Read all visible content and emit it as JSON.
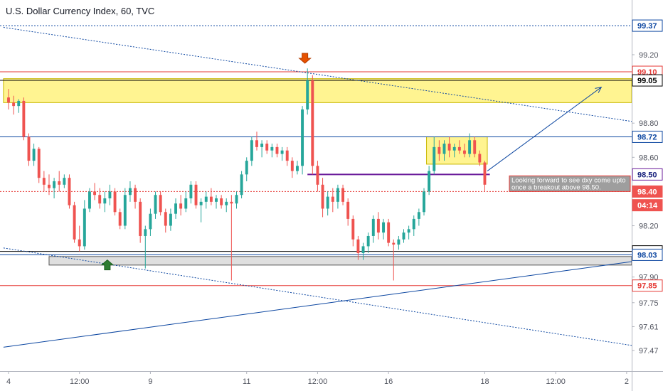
{
  "header": {
    "title": "U.S. Dollar Currency Index, 60, TVC"
  },
  "colors": {
    "up": "#26a69a",
    "down": "#ef5350",
    "red_line": "#e53935",
    "blue_line": "#0d47a1",
    "zone_fill": "#fff176",
    "zone_edge": "#c9b800",
    "grey_box": "#d9d9d9",
    "arrow_down": "#e65100",
    "arrow_up": "#2e7d32",
    "annotation_bg": "#9e9e9e"
  },
  "chart_data": {
    "type": "candlestick",
    "title": "U.S. Dollar Currency Index, 60, TVC",
    "ylim": [
      97.35,
      99.52
    ],
    "y_ticks": [
      97.47,
      97.61,
      97.75,
      97.9,
      98.2,
      98.6,
      98.8,
      99.2
    ],
    "x_ticks": [
      {
        "label": "4",
        "i": 0
      },
      {
        "label": "12:00",
        "i": 14
      },
      {
        "label": "9",
        "i": 28
      },
      {
        "label": "11",
        "i": 47
      },
      {
        "label": "12:00",
        "i": 61
      },
      {
        "label": "16",
        "i": 75
      },
      {
        "label": "18",
        "i": 94
      },
      {
        "label": "12:00",
        "i": 108
      },
      {
        "label": "2",
        "i": 122
      }
    ],
    "x_span": 123,
    "price_labels": [
      {
        "value": 99.37,
        "text": "99.37",
        "style": "blue-box"
      },
      {
        "value": 99.1,
        "text": "99.10",
        "style": "red-box"
      },
      {
        "value": 99.05,
        "text": "99.05",
        "style": "black-box"
      },
      {
        "value": 98.72,
        "text": "98.72",
        "style": "blue-box"
      },
      {
        "value": 98.5,
        "text": "98.50",
        "style": "purple-box"
      },
      {
        "value": 98.4,
        "text": "98.40",
        "style": "red-fill"
      },
      {
        "value": 98.32,
        "text": "04:14",
        "style": "red-fill"
      },
      {
        "value": 98.05,
        "text": "98.05",
        "style": "black-box"
      },
      {
        "value": 98.03,
        "text": "98.03",
        "style": "blue-box"
      },
      {
        "value": 97.85,
        "text": "97.85",
        "style": "red-box"
      }
    ],
    "horizontal_lines": [
      {
        "value": 99.37,
        "color": "blue",
        "dash": true
      },
      {
        "value": 99.1,
        "color": "red",
        "dash": false
      },
      {
        "value": 99.05,
        "color": "black",
        "dash": false
      },
      {
        "value": 98.72,
        "color": "blue",
        "dash": false
      },
      {
        "value": 98.4,
        "color": "red",
        "dash": true
      },
      {
        "value": 98.05,
        "color": "black",
        "dash": false
      },
      {
        "value": 98.03,
        "color": "blue",
        "dash": false
      },
      {
        "value": 97.85,
        "color": "red",
        "dash": false
      }
    ],
    "annotation": "Looking forward to see dxy come upto once a breakout above 98.50.",
    "candles": [
      [
        98.95,
        99.0,
        98.88,
        98.92
      ],
      [
        98.92,
        98.96,
        98.85,
        98.9
      ],
      [
        98.9,
        98.94,
        98.86,
        98.93
      ],
      [
        98.93,
        98.95,
        98.7,
        98.72
      ],
      [
        98.72,
        98.74,
        98.55,
        98.58
      ],
      [
        98.58,
        98.68,
        98.55,
        98.65
      ],
      [
        98.65,
        98.66,
        98.45,
        98.48
      ],
      [
        98.48,
        98.52,
        98.4,
        98.44
      ],
      [
        98.44,
        98.5,
        98.38,
        98.42
      ],
      [
        98.42,
        98.48,
        98.36,
        98.46
      ],
      [
        98.46,
        98.52,
        98.4,
        98.44
      ],
      [
        98.44,
        98.5,
        98.42,
        98.48
      ],
      [
        98.48,
        98.5,
        98.3,
        98.32
      ],
      [
        98.32,
        98.34,
        98.1,
        98.12
      ],
      [
        98.12,
        98.2,
        98.05,
        98.08
      ],
      [
        98.08,
        98.35,
        98.06,
        98.3
      ],
      [
        98.3,
        98.42,
        98.28,
        98.4
      ],
      [
        98.4,
        98.45,
        98.35,
        98.38
      ],
      [
        98.38,
        98.42,
        98.3,
        98.33
      ],
      [
        98.33,
        98.4,
        98.28,
        98.36
      ],
      [
        98.36,
        98.44,
        98.32,
        98.4
      ],
      [
        98.4,
        98.42,
        98.26,
        98.28
      ],
      [
        98.28,
        98.3,
        98.18,
        98.2
      ],
      [
        98.2,
        98.42,
        98.18,
        98.38
      ],
      [
        98.38,
        98.46,
        98.34,
        98.42
      ],
      [
        98.42,
        98.44,
        98.3,
        98.34
      ],
      [
        98.34,
        98.36,
        98.1,
        98.14
      ],
      [
        98.14,
        98.2,
        97.95,
        98.18
      ],
      [
        98.18,
        98.3,
        98.14,
        98.27
      ],
      [
        98.27,
        98.4,
        98.24,
        98.38
      ],
      [
        98.38,
        98.4,
        98.26,
        98.28
      ],
      [
        98.28,
        98.3,
        98.16,
        98.2
      ],
      [
        98.2,
        98.3,
        98.17,
        98.27
      ],
      [
        98.27,
        98.36,
        98.24,
        98.33
      ],
      [
        98.33,
        98.38,
        98.26,
        98.3
      ],
      [
        98.3,
        98.4,
        98.28,
        98.36
      ],
      [
        98.36,
        98.46,
        98.33,
        98.44
      ],
      [
        98.44,
        98.46,
        98.3,
        98.32
      ],
      [
        98.32,
        98.36,
        98.22,
        98.34
      ],
      [
        98.34,
        98.4,
        98.3,
        98.37
      ],
      [
        98.37,
        98.42,
        98.32,
        98.34
      ],
      [
        98.34,
        98.38,
        98.3,
        98.36
      ],
      [
        98.36,
        98.38,
        98.3,
        98.32
      ],
      [
        98.32,
        98.36,
        98.28,
        98.34
      ],
      [
        98.34,
        98.38,
        97.88,
        98.33
      ],
      [
        98.33,
        98.4,
        98.3,
        98.38
      ],
      [
        98.38,
        98.52,
        98.36,
        98.5
      ],
      [
        98.5,
        98.6,
        98.46,
        98.58
      ],
      [
        98.58,
        98.72,
        98.55,
        98.7
      ],
      [
        98.7,
        98.75,
        98.64,
        98.66
      ],
      [
        98.66,
        98.7,
        98.6,
        98.68
      ],
      [
        98.68,
        98.7,
        98.62,
        98.64
      ],
      [
        98.64,
        98.68,
        98.6,
        98.66
      ],
      [
        98.66,
        98.68,
        98.6,
        98.62
      ],
      [
        98.62,
        98.66,
        98.58,
        98.64
      ],
      [
        98.64,
        98.66,
        98.55,
        98.58
      ],
      [
        98.58,
        98.6,
        98.48,
        98.52
      ],
      [
        98.52,
        98.58,
        98.5,
        98.55
      ],
      [
        98.55,
        98.9,
        98.5,
        98.88
      ],
      [
        98.88,
        99.12,
        98.85,
        99.05
      ],
      [
        99.05,
        99.08,
        98.5,
        98.55
      ],
      [
        98.55,
        98.58,
        98.4,
        98.44
      ],
      [
        98.44,
        98.48,
        98.25,
        98.3
      ],
      [
        98.3,
        98.4,
        98.26,
        98.37
      ],
      [
        98.37,
        98.42,
        98.28,
        98.34
      ],
      [
        98.34,
        98.44,
        98.3,
        98.42
      ],
      [
        98.42,
        98.44,
        98.32,
        98.34
      ],
      [
        98.34,
        98.36,
        98.2,
        98.24
      ],
      [
        98.24,
        98.26,
        98.08,
        98.12
      ],
      [
        98.12,
        98.14,
        98.0,
        98.04
      ],
      [
        98.04,
        98.1,
        98.0,
        98.08
      ],
      [
        98.08,
        98.16,
        98.04,
        98.14
      ],
      [
        98.14,
        98.26,
        98.1,
        98.24
      ],
      [
        98.24,
        98.28,
        98.12,
        98.16
      ],
      [
        98.16,
        98.24,
        98.12,
        98.22
      ],
      [
        98.22,
        98.24,
        98.08,
        98.1
      ],
      [
        98.1,
        98.12,
        97.88,
        98.09
      ],
      [
        98.09,
        98.14,
        98.06,
        98.12
      ],
      [
        98.12,
        98.18,
        98.1,
        98.16
      ],
      [
        98.16,
        98.2,
        98.12,
        98.18
      ],
      [
        98.18,
        98.26,
        98.14,
        98.24
      ],
      [
        98.24,
        98.3,
        98.2,
        98.28
      ],
      [
        98.28,
        98.42,
        98.26,
        98.4
      ],
      [
        98.4,
        98.55,
        98.38,
        98.52
      ],
      [
        98.52,
        98.72,
        98.5,
        98.66
      ],
      [
        98.66,
        98.7,
        98.58,
        98.62
      ],
      [
        98.62,
        98.7,
        98.58,
        98.68
      ],
      [
        98.68,
        98.72,
        98.6,
        98.64
      ],
      [
        98.64,
        98.68,
        98.6,
        98.66
      ],
      [
        98.66,
        98.7,
        98.62,
        98.64
      ],
      [
        98.64,
        98.68,
        98.6,
        98.62
      ],
      [
        98.62,
        98.74,
        98.6,
        98.7
      ],
      [
        98.7,
        98.72,
        98.6,
        98.62
      ],
      [
        98.62,
        98.64,
        98.55,
        98.57
      ],
      [
        98.57,
        98.58,
        98.4,
        98.44
      ]
    ],
    "zones": [
      {
        "name": "resistance-zone",
        "i0": -1,
        "i1": 123,
        "y0": 99.06,
        "y1": 98.92,
        "fill": "yellow"
      },
      {
        "name": "consolidation-box",
        "i0": 82.5,
        "i1": 94.5,
        "y0": 98.72,
        "y1": 98.56,
        "fill": "yellow"
      },
      {
        "name": "support-box",
        "i0": 8,
        "i1": 123,
        "y0": 98.02,
        "y1": 97.97,
        "fill": "grey"
      }
    ],
    "trendlines": [
      {
        "name": "upper-dotted-trendline",
        "p0": [
          -1,
          99.36
        ],
        "p1": [
          123,
          98.81
        ],
        "style": "dotted"
      },
      {
        "name": "lower-dotted-trendline",
        "p0": [
          -1,
          98.07
        ],
        "p1": [
          123,
          97.5
        ],
        "style": "dotted"
      },
      {
        "name": "rising-trendline",
        "p0": [
          -1,
          97.49
        ],
        "p1": [
          123,
          97.99
        ],
        "style": "solid"
      },
      {
        "name": "projection-arrow-line",
        "p0": [
          94.5,
          98.52
        ],
        "p1": [
          117,
          99.01
        ],
        "style": "solid"
      },
      {
        "name": "breakout-level-line",
        "i0": 59,
        "i1": 95,
        "value": 98.5,
        "style": "purple"
      }
    ],
    "markers": [
      {
        "name": "sell-arrow",
        "i": 58.5,
        "value": 99.15,
        "dir": "down"
      },
      {
        "name": "buy-arrow",
        "i": 19.5,
        "value": 98.0,
        "dir": "up"
      }
    ]
  }
}
